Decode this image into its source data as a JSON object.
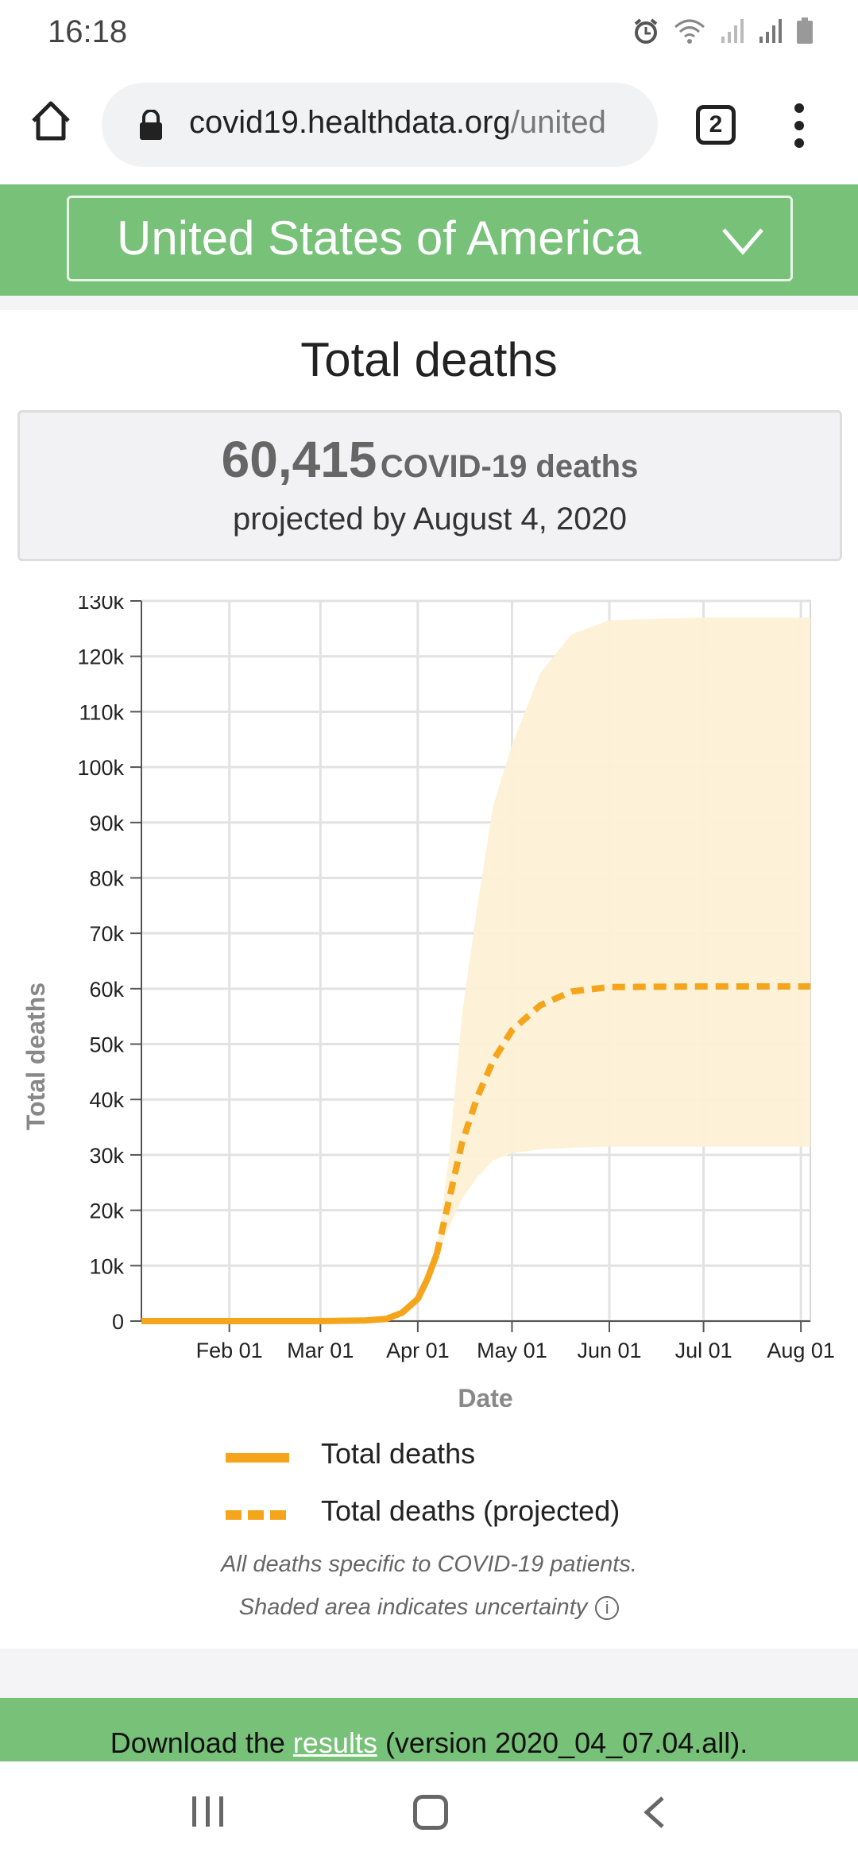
{
  "status_bar": {
    "time": "16:18",
    "icons": [
      "alarm-icon",
      "wifi-icon",
      "signal-icon",
      "signal-icon",
      "battery-icon"
    ]
  },
  "browser": {
    "url_domain": "covid19.healthdata.org",
    "url_path": "/united",
    "tab_count": "2"
  },
  "location": {
    "selected": "United States of America"
  },
  "section": {
    "title": "Total deaths",
    "summary_number": "60,415",
    "summary_unit": "COVID-19 deaths",
    "summary_subtitle": "projected by August 4, 2020"
  },
  "legend": {
    "actual": "Total deaths",
    "projected": "Total deaths (projected)"
  },
  "notes": {
    "line1": "All deaths specific to COVID-19 patients.",
    "line2": "Shaded area indicates uncertainty"
  },
  "download": {
    "prefix": "Download the ",
    "link": "results",
    "suffix": " (version 2020_04_07.04.all)."
  },
  "colors": {
    "accent_green": "#77c178",
    "line_orange": "#f4a51c",
    "band_fill": "#fdf0d5"
  },
  "chart_data": {
    "type": "line",
    "xlabel": "Date",
    "ylabel": "Total deaths",
    "x_ticks": [
      "Feb 01",
      "Mar 01",
      "Apr 01",
      "May 01",
      "Jun 01",
      "Jul 01",
      "Aug 01"
    ],
    "x_tick_dates": [
      "2020-02-01",
      "2020-03-01",
      "2020-04-01",
      "2020-05-01",
      "2020-06-01",
      "2020-07-01",
      "2020-08-01"
    ],
    "x_range": [
      "2020-01-04",
      "2020-08-04"
    ],
    "y_ticks": [
      "0",
      "10k",
      "20k",
      "30k",
      "40k",
      "50k",
      "60k",
      "70k",
      "80k",
      "90k",
      "100k",
      "110k",
      "120k",
      "130k"
    ],
    "ylim": [
      0,
      130000
    ],
    "grid": true,
    "series": [
      {
        "name": "Total deaths",
        "style": "solid",
        "x": [
          "2020-01-04",
          "2020-02-01",
          "2020-03-01",
          "2020-03-15",
          "2020-03-22",
          "2020-03-27",
          "2020-04-01",
          "2020-04-04",
          "2020-04-07"
        ],
        "y": [
          0,
          0,
          0,
          100,
          400,
          1500,
          4000,
          7500,
          12000
        ]
      },
      {
        "name": "Total deaths (projected)",
        "style": "dashed",
        "x": [
          "2020-04-07",
          "2020-04-11",
          "2020-04-15",
          "2020-04-20",
          "2020-04-25",
          "2020-05-01",
          "2020-05-10",
          "2020-05-20",
          "2020-06-01",
          "2020-07-01",
          "2020-08-04"
        ],
        "y": [
          12000,
          22000,
          32000,
          40500,
          47000,
          52500,
          57000,
          59500,
          60300,
          60400,
          60415
        ]
      },
      {
        "name": "",
        "style": "band",
        "x": [
          "2020-04-07",
          "2020-04-11",
          "2020-04-15",
          "2020-04-20",
          "2020-04-25",
          "2020-05-01",
          "2020-05-10",
          "2020-05-20",
          "2020-06-01",
          "2020-07-01",
          "2020-08-04"
        ],
        "lower": [
          12000,
          17000,
          22000,
          26000,
          29000,
          30300,
          31000,
          31300,
          31500,
          31500,
          31500
        ],
        "upper": [
          12000,
          30000,
          55000,
          75000,
          93000,
          104000,
          117000,
          124000,
          126500,
          127000,
          127000
        ]
      }
    ]
  }
}
